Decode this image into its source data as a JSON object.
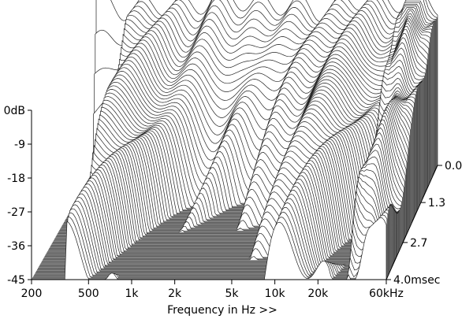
{
  "chart_data": {
    "type": "waterfall",
    "xlabel": "Frequency in Hz >>",
    "x_scale": "log",
    "x_ticks": [
      {
        "value": 200,
        "label": "200"
      },
      {
        "value": 500,
        "label": "500"
      },
      {
        "value": 1000,
        "label": "1k"
      },
      {
        "value": 2000,
        "label": "2k"
      },
      {
        "value": 5000,
        "label": "5k"
      },
      {
        "value": 10000,
        "label": "10k"
      },
      {
        "value": 20000,
        "label": "20k"
      },
      {
        "value": 60000,
        "label": "60kHz"
      }
    ],
    "xlim": [
      200,
      60000
    ],
    "y_ticks": [
      {
        "value": 0,
        "label": "0dB"
      },
      {
        "value": -9,
        "label": "-9"
      },
      {
        "value": -18,
        "label": "-18"
      },
      {
        "value": -27,
        "label": "-27"
      },
      {
        "value": -36,
        "label": "-36"
      },
      {
        "value": -45,
        "label": "-45"
      }
    ],
    "ylim": [
      -45,
      0
    ],
    "z_ticks": [
      {
        "value": 0.0,
        "label": "0.0"
      },
      {
        "value": 1.3,
        "label": "1.3"
      },
      {
        "value": 2.7,
        "label": "2.7"
      },
      {
        "value": 4.0,
        "label": "4.0msec"
      }
    ],
    "zlim": [
      0,
      4.0
    ],
    "grid": false,
    "legend": "none",
    "colors": {
      "line": "#222222",
      "floor": "#8c8c8c",
      "background": "#ffffff"
    }
  }
}
